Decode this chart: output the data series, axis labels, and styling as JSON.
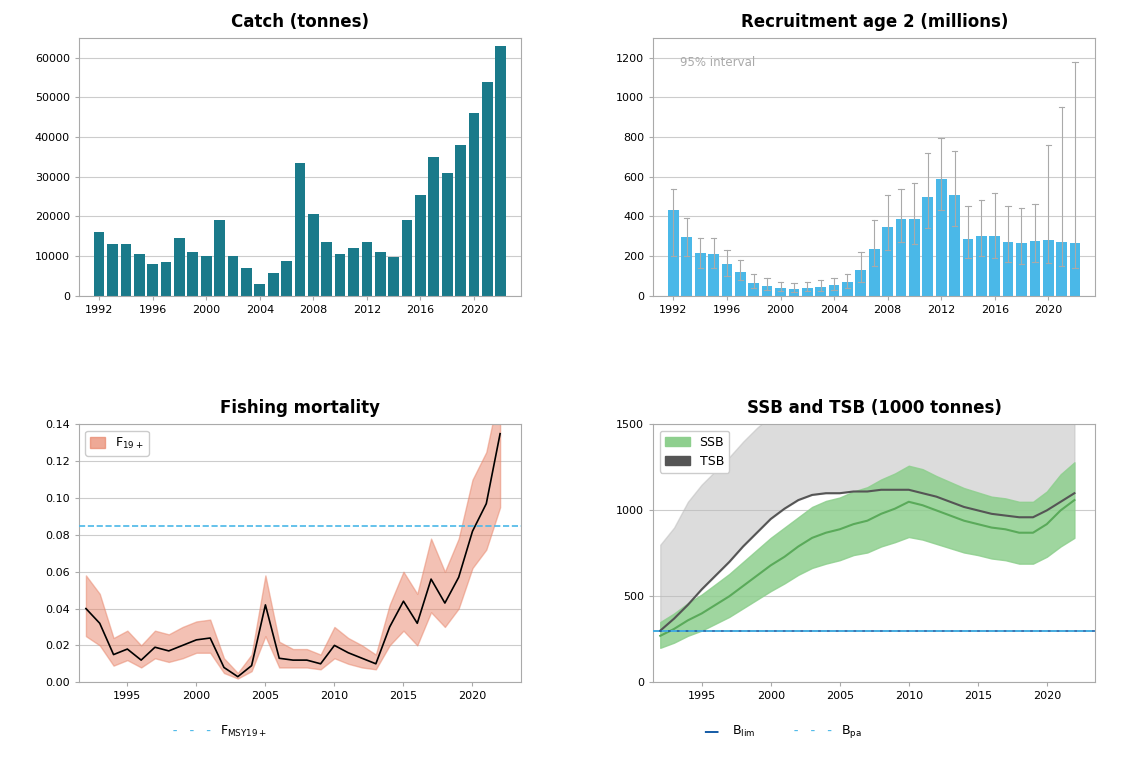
{
  "catch_years": [
    1992,
    1993,
    1994,
    1995,
    1996,
    1997,
    1998,
    1999,
    2000,
    2001,
    2002,
    2003,
    2004,
    2005,
    2006,
    2007,
    2008,
    2009,
    2010,
    2011,
    2012,
    2013,
    2014,
    2015,
    2016,
    2017,
    2018,
    2019,
    2020,
    2021,
    2022
  ],
  "catch_values": [
    16000,
    13000,
    13000,
    10500,
    8000,
    8500,
    14500,
    11000,
    10000,
    19000,
    10000,
    7000,
    3000,
    5800,
    8800,
    33500,
    20500,
    13500,
    10500,
    12000,
    13500,
    11000,
    9800,
    19000,
    25500,
    35000,
    31000,
    38000,
    46000,
    54000,
    63000
  ],
  "catch_color": "#1a7a8a",
  "recruit_years": [
    1992,
    1993,
    1994,
    1995,
    1996,
    1997,
    1998,
    1999,
    2000,
    2001,
    2002,
    2003,
    2004,
    2005,
    2006,
    2007,
    2008,
    2009,
    2010,
    2011,
    2012,
    2013,
    2014,
    2015,
    2016,
    2017,
    2018,
    2019,
    2020,
    2021,
    2022
  ],
  "recruit_values": [
    430,
    295,
    215,
    210,
    160,
    120,
    65,
    50,
    40,
    35,
    40,
    45,
    55,
    70,
    130,
    235,
    345,
    385,
    385,
    495,
    590,
    510,
    285,
    300,
    300,
    270,
    265,
    275,
    280,
    270,
    265
  ],
  "recruit_lo": [
    200,
    200,
    140,
    140,
    100,
    80,
    40,
    30,
    25,
    20,
    25,
    25,
    30,
    40,
    70,
    150,
    230,
    270,
    260,
    340,
    430,
    350,
    190,
    200,
    190,
    170,
    160,
    170,
    165,
    150,
    140
  ],
  "recruit_hi": [
    540,
    390,
    290,
    290,
    230,
    180,
    110,
    90,
    70,
    65,
    70,
    80,
    90,
    110,
    220,
    380,
    510,
    540,
    570,
    720,
    795,
    730,
    450,
    480,
    520,
    450,
    440,
    460,
    760,
    950,
    1180
  ],
  "recruit_color": "#4ab8e8",
  "recruit_ci_color": "#aaaaaa",
  "f_years": [
    1992,
    1993,
    1994,
    1995,
    1996,
    1997,
    1998,
    1999,
    2000,
    2001,
    2002,
    2003,
    2004,
    2005,
    2006,
    2007,
    2008,
    2009,
    2010,
    2011,
    2012,
    2013,
    2014,
    2015,
    2016,
    2017,
    2018,
    2019,
    2020,
    2021,
    2022
  ],
  "f_values": [
    0.04,
    0.032,
    0.015,
    0.018,
    0.012,
    0.019,
    0.017,
    0.02,
    0.023,
    0.024,
    0.008,
    0.003,
    0.009,
    0.042,
    0.013,
    0.012,
    0.012,
    0.01,
    0.02,
    0.016,
    0.013,
    0.01,
    0.03,
    0.044,
    0.032,
    0.056,
    0.043,
    0.057,
    0.082,
    0.097,
    0.135
  ],
  "f_lo": [
    0.025,
    0.02,
    0.009,
    0.012,
    0.008,
    0.013,
    0.011,
    0.013,
    0.016,
    0.016,
    0.005,
    0.002,
    0.006,
    0.025,
    0.008,
    0.008,
    0.008,
    0.007,
    0.013,
    0.01,
    0.008,
    0.007,
    0.02,
    0.028,
    0.02,
    0.038,
    0.03,
    0.04,
    0.062,
    0.072,
    0.095
  ],
  "f_hi": [
    0.058,
    0.048,
    0.024,
    0.028,
    0.02,
    0.028,
    0.026,
    0.03,
    0.033,
    0.034,
    0.013,
    0.005,
    0.015,
    0.058,
    0.022,
    0.018,
    0.018,
    0.015,
    0.03,
    0.024,
    0.02,
    0.015,
    0.042,
    0.06,
    0.048,
    0.078,
    0.06,
    0.078,
    0.11,
    0.125,
    0.16
  ],
  "f_fill_color": "#e8856a",
  "f_msy": 0.085,
  "f_msy_color": "#4ab8e8",
  "ssb_years": [
    1992,
    1993,
    1994,
    1995,
    1996,
    1997,
    1998,
    1999,
    2000,
    2001,
    2002,
    2003,
    2004,
    2005,
    2006,
    2007,
    2008,
    2009,
    2010,
    2011,
    2012,
    2013,
    2014,
    2015,
    2016,
    2017,
    2018,
    2019,
    2020,
    2021,
    2022
  ],
  "ssb_values": [
    270,
    310,
    360,
    400,
    450,
    500,
    560,
    620,
    680,
    730,
    790,
    840,
    870,
    890,
    920,
    940,
    980,
    1010,
    1050,
    1030,
    1000,
    970,
    940,
    920,
    900,
    890,
    870,
    870,
    920,
    1000,
    1060
  ],
  "ssb_lo": [
    200,
    230,
    270,
    300,
    340,
    380,
    430,
    480,
    530,
    575,
    625,
    665,
    690,
    710,
    740,
    755,
    790,
    815,
    845,
    830,
    805,
    780,
    755,
    740,
    720,
    710,
    690,
    690,
    730,
    790,
    840
  ],
  "ssb_hi": [
    350,
    400,
    460,
    510,
    570,
    630,
    700,
    770,
    840,
    900,
    960,
    1020,
    1055,
    1075,
    1110,
    1135,
    1180,
    1215,
    1260,
    1240,
    1200,
    1165,
    1130,
    1105,
    1080,
    1070,
    1050,
    1050,
    1110,
    1210,
    1280
  ],
  "ssb_color": "#5aaa5a",
  "ssb_fill_color": "#8ecf8e",
  "tsb_years": [
    1992,
    1993,
    1994,
    1995,
    1996,
    1997,
    1998,
    1999,
    2000,
    2001,
    2002,
    2003,
    2004,
    2005,
    2006,
    2007,
    2008,
    2009,
    2010,
    2011,
    2012,
    2013,
    2014,
    2015,
    2016,
    2017,
    2018,
    2019,
    2020,
    2021,
    2022
  ],
  "tsb_values": [
    300,
    370,
    450,
    540,
    620,
    700,
    790,
    870,
    950,
    1010,
    1060,
    1090,
    1100,
    1100,
    1110,
    1110,
    1120,
    1120,
    1120,
    1100,
    1080,
    1050,
    1020,
    1000,
    980,
    970,
    960,
    960,
    1000,
    1050,
    1100
  ],
  "tsb_hi_extra": [
    800,
    900,
    1050,
    1150,
    1230,
    1310,
    1400,
    1480,
    1550,
    1600,
    1650,
    1680,
    1690,
    1690,
    1700,
    1700,
    1720,
    1720,
    1730,
    1720,
    1700,
    1680,
    1640,
    1610,
    1580,
    1560,
    1540,
    1540,
    1580,
    1630,
    1680
  ],
  "tsb_color": "#555555",
  "blim": 300,
  "blim_color": "#1a5fa8",
  "bpa": 300,
  "bpa_color": "#4ab8e8",
  "background_color": "#ffffff",
  "grid_color": "#cccccc"
}
